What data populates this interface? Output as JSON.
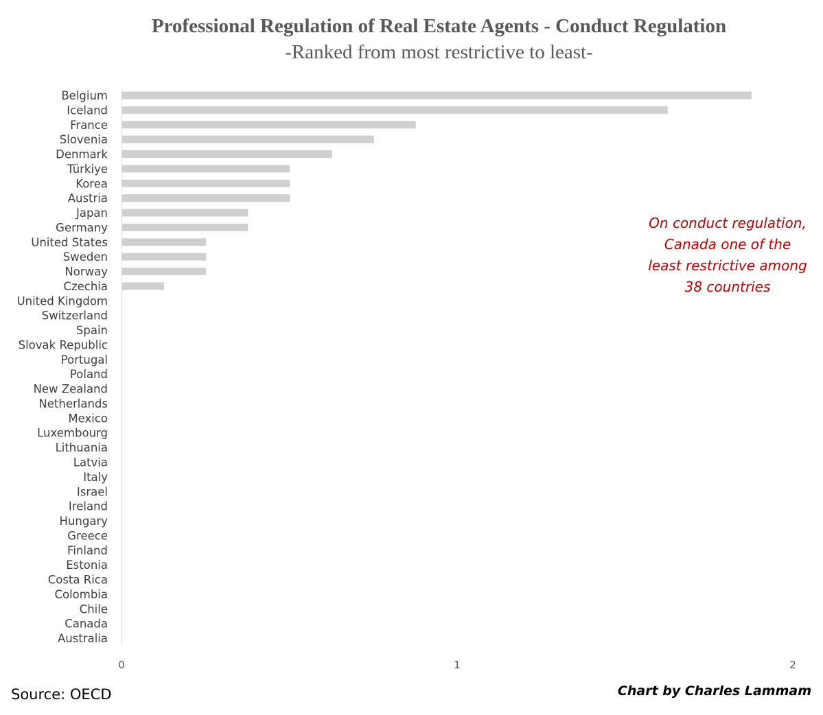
{
  "chart_data": {
    "type": "bar",
    "orientation": "horizontal",
    "title": "Professional Regulation of Real Estate Agents - Conduct Regulation",
    "subtitle": "-Ranked from most restrictive to least-",
    "categories": [
      "Belgium",
      "Iceland",
      "France",
      "Slovenia",
      "Denmark",
      "Türkiye",
      "Korea",
      "Austria",
      "Japan",
      "Germany",
      "United States",
      "Sweden",
      "Norway",
      "Czechia",
      "United Kingdom",
      "Switzerland",
      "Spain",
      "Slovak Republic",
      "Portugal",
      "Poland",
      "New Zealand",
      "Netherlands",
      "Mexico",
      "Luxembourg",
      "Lithuania",
      "Latvia",
      "Italy",
      "Israel",
      "Ireland",
      "Hungary",
      "Greece",
      "Finland",
      "Estonia",
      "Costa Rica",
      "Colombia",
      "Chile",
      "Canada",
      "Australia"
    ],
    "values": [
      1.875,
      1.625,
      0.875,
      0.75,
      0.625,
      0.5,
      0.5,
      0.5,
      0.375,
      0.375,
      0.25,
      0.25,
      0.25,
      0.125,
      0,
      0,
      0,
      0,
      0,
      0,
      0,
      0,
      0,
      0,
      0,
      0,
      0,
      0,
      0,
      0,
      0,
      0,
      0,
      0,
      0,
      0,
      0,
      0
    ],
    "xlim": [
      0,
      2
    ],
    "xticks": [
      "0",
      "1",
      "2"
    ],
    "bar_color": "#d0d0d0",
    "grid": false,
    "legend": "none"
  },
  "annotation": {
    "lines": [
      "On conduct regulation,",
      "Canada one of the",
      "least restrictive among",
      "38 countries"
    ],
    "color": "#c00000"
  },
  "footer": {
    "source": "Source: OECD",
    "credit": "Chart by Charles Lammam"
  }
}
